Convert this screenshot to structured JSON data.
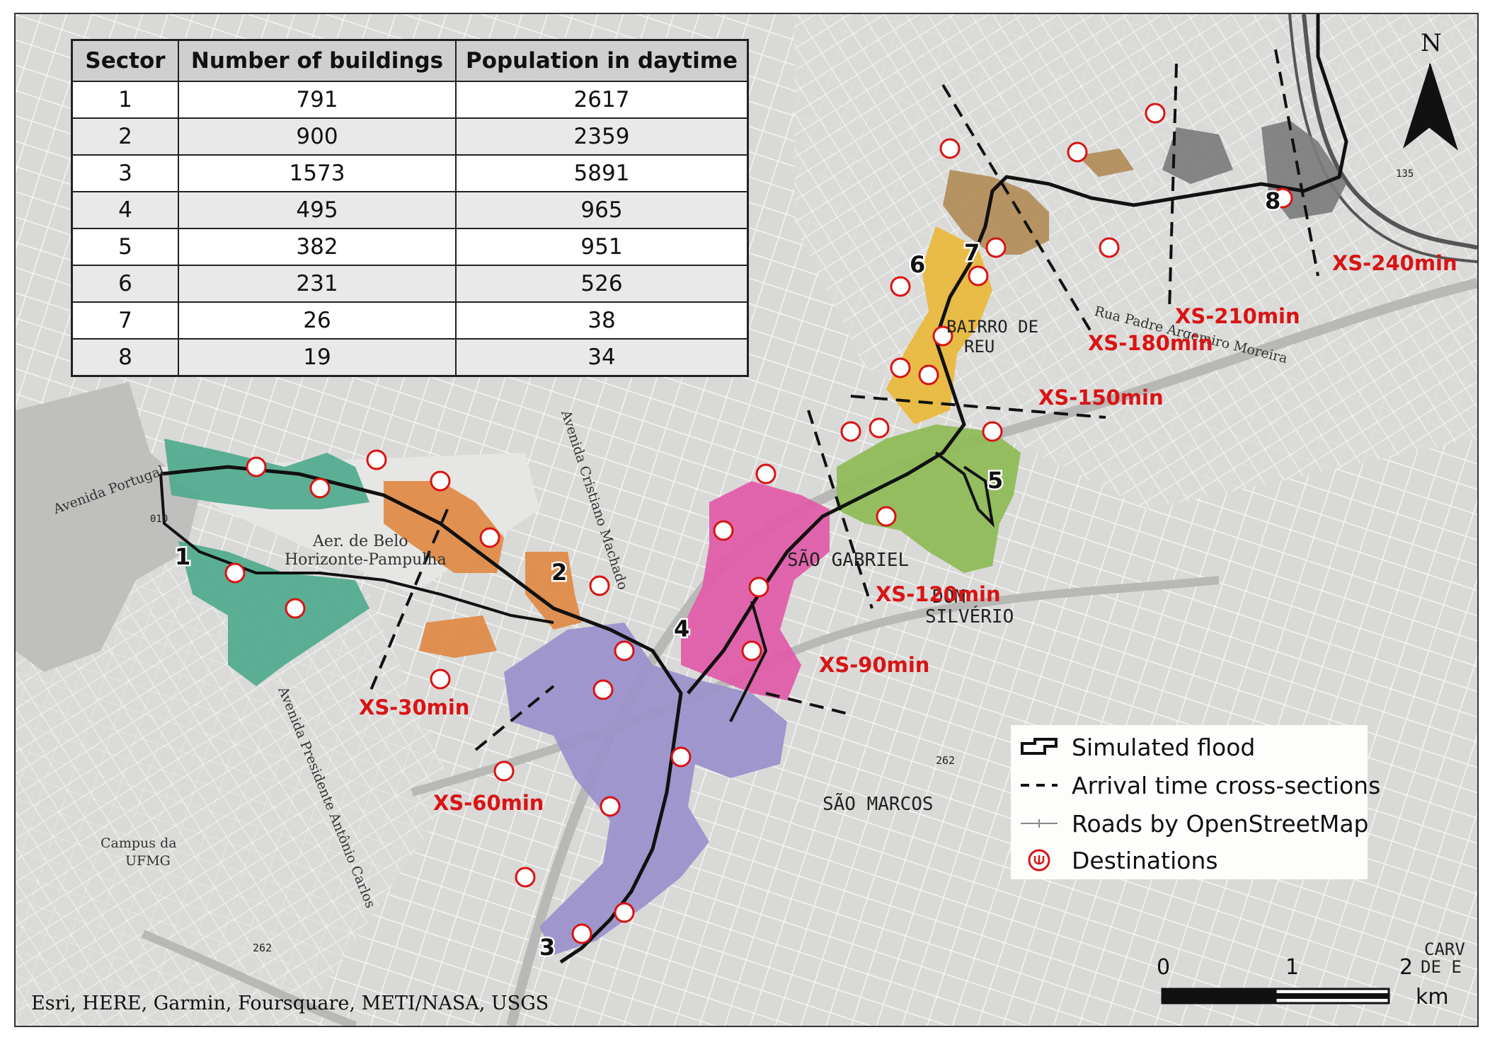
{
  "table": {
    "headers": [
      "Sector",
      "Number of buildings",
      "Population in daytime"
    ],
    "rows": [
      [
        "1",
        "791",
        "2617"
      ],
      [
        "2",
        "900",
        "2359"
      ],
      [
        "3",
        "1573",
        "5891"
      ],
      [
        "4",
        "495",
        "965"
      ],
      [
        "5",
        "382",
        "951"
      ],
      [
        "6",
        "231",
        "526"
      ],
      [
        "7",
        "26",
        "38"
      ],
      [
        "8",
        "19",
        "34"
      ]
    ]
  },
  "sector_labels": [
    "1",
    "2",
    "3",
    "4",
    "5",
    "6",
    "7",
    "8"
  ],
  "sector_colors": {
    "1": "#4faa8e",
    "2": "#e08a45",
    "3": "#9a90cc",
    "4": "#e05aa8",
    "5": "#8dbb55",
    "6": "#e9b83a",
    "7": "#b28c58",
    "8": "#7d7d7d"
  },
  "cross_sections": [
    "XS-30min",
    "XS-60min",
    "XS-90min",
    "XS-120min",
    "XS-150min",
    "XS-180min",
    "XS-210min",
    "XS-240min"
  ],
  "cross_section_color": "#d81414",
  "place_names": {
    "sao_gabriel": "SÃO GABRIEL",
    "dom_silverio_1": "DOM",
    "dom_silverio_2": "SILVÉRIO",
    "sao_marcos": "SÃO MARCOS",
    "bairro_1": "BAIRRO DE",
    "bairro_2": "REU",
    "aer_1": "Aer. de Belo",
    "aer_2": "Horizonte-Pampulha",
    "campus_1": "Campus da",
    "campus_2": "UFMG",
    "carv_1": "CARV",
    "carv_2": "DE E",
    "av_cristiano": "Avenida Cristiano Machado",
    "av_portugal": "Avenida Portugal",
    "av_presidente": "Avenida Presidente Antônio Carlos",
    "rua_padre": "Rua Padre Argemiro Moreira",
    "road_262a": "262",
    "road_262b": "262",
    "road_010": "010",
    "road_135": "135"
  },
  "north_label": "N",
  "legend": {
    "flood": "Simulated flood",
    "cross_sections": "Arrival time cross-sections",
    "roads": "Roads by OpenStreetMap",
    "destinations": "Destinations"
  },
  "destination_icon": "destination-marker-icon",
  "attribution": "Esri, HERE, Garmin, Foursquare, METI/NASA, USGS",
  "scale": {
    "ticks": [
      "0",
      "1",
      "2"
    ],
    "unit": "km"
  }
}
